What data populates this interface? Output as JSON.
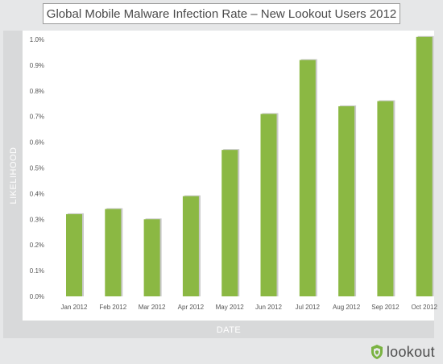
{
  "colors": {
    "background": "#e6e7e8",
    "plot_background": "#ffffff",
    "bar_fill": "#8bb843",
    "axis_band": "#d8d9da",
    "logo_green": "#7ab342"
  },
  "logo": {
    "text": "lookout",
    "icon": "lookout-shield-icon"
  },
  "chart_data": {
    "type": "bar",
    "title": "Global Mobile Malware Infection Rate – New Lookout Users 2012",
    "xlabel": "DATE",
    "ylabel": "LIKELIHOOD",
    "categories": [
      "Jan 2012",
      "Feb 2012",
      "Mar 2012",
      "Apr 2012",
      "May 2012",
      "Jun 2012",
      "Jul 2012",
      "Aug 2012",
      "Sep 2012",
      "Oct 2012"
    ],
    "values": [
      0.32,
      0.34,
      0.3,
      0.39,
      0.57,
      0.71,
      0.92,
      0.74,
      0.76,
      1.01
    ],
    "unit": "%",
    "ylim": [
      0,
      1.0
    ],
    "yticks": [
      "0.0%",
      "0.1%",
      "0.2%",
      "0.3%",
      "0.4%",
      "0.5%",
      "0.6%",
      "0.7%",
      "0.8%",
      "0.9%",
      "1.0%"
    ],
    "ytick_values": [
      0,
      0.1,
      0.2,
      0.3,
      0.4,
      0.5,
      0.6,
      0.7,
      0.8,
      0.9,
      1.0
    ],
    "grid": false,
    "legend": "none"
  }
}
